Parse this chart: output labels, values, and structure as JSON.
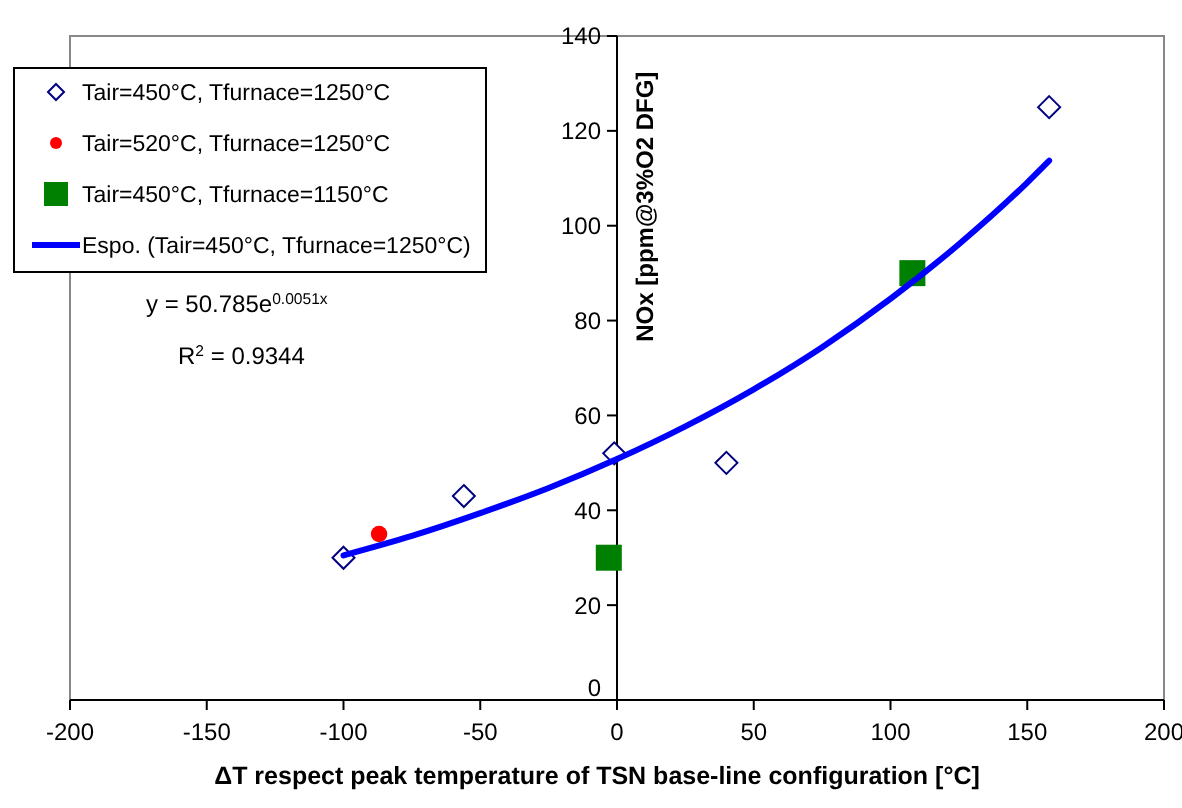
{
  "chart_data": {
    "type": "scatter",
    "xlabel": "ΔT respect peak temperature of TSN base-line configuration  [°C]",
    "ylabel": "NOx [ppm@3%O2 DFG]",
    "xlim": [
      -200,
      200
    ],
    "xticks": [
      -200,
      -150,
      -100,
      -50,
      0,
      50,
      100,
      150,
      200
    ],
    "ylim": [
      0,
      140
    ],
    "yticks": [
      0,
      20,
      40,
      60,
      80,
      100,
      120,
      140
    ],
    "grid": false,
    "legend": "top left",
    "series": [
      {
        "name": "Tair=450°C, Tfurnace=1250°C",
        "color": "#000080",
        "marker": "diamond",
        "x": [
          -100,
          -56,
          -1,
          40,
          158
        ],
        "values": [
          30,
          43,
          52,
          50,
          125
        ]
      },
      {
        "name": "Tair=520°C, Tfurnace=1250°C",
        "color": "#ff0000",
        "marker": "circle",
        "x": [
          -87
        ],
        "values": [
          35
        ]
      },
      {
        "name": "Tair=450°C, Tfurnace=1150°C",
        "color": "#008000",
        "marker": "square",
        "x": [
          -3,
          108
        ],
        "values": [
          30,
          90
        ]
      },
      {
        "name": "Espo. (Tair=450°C, Tfurnace=1250°C)",
        "type": "line",
        "color": "#0000ff",
        "marker": "none",
        "x": [
          -100,
          -75,
          -50,
          -25,
          0,
          25,
          50,
          75,
          100,
          125,
          150,
          158
        ],
        "values": [
          30.5,
          34.6,
          39.4,
          44.7,
          50.8,
          57.7,
          65.5,
          74.4,
          84.6,
          96.1,
          109.1,
          113.7
        ]
      }
    ],
    "annotations": [
      "y = 50.785e$^{0.0051x}$",
      "R$^{2}$ = 0.9344"
    ]
  }
}
